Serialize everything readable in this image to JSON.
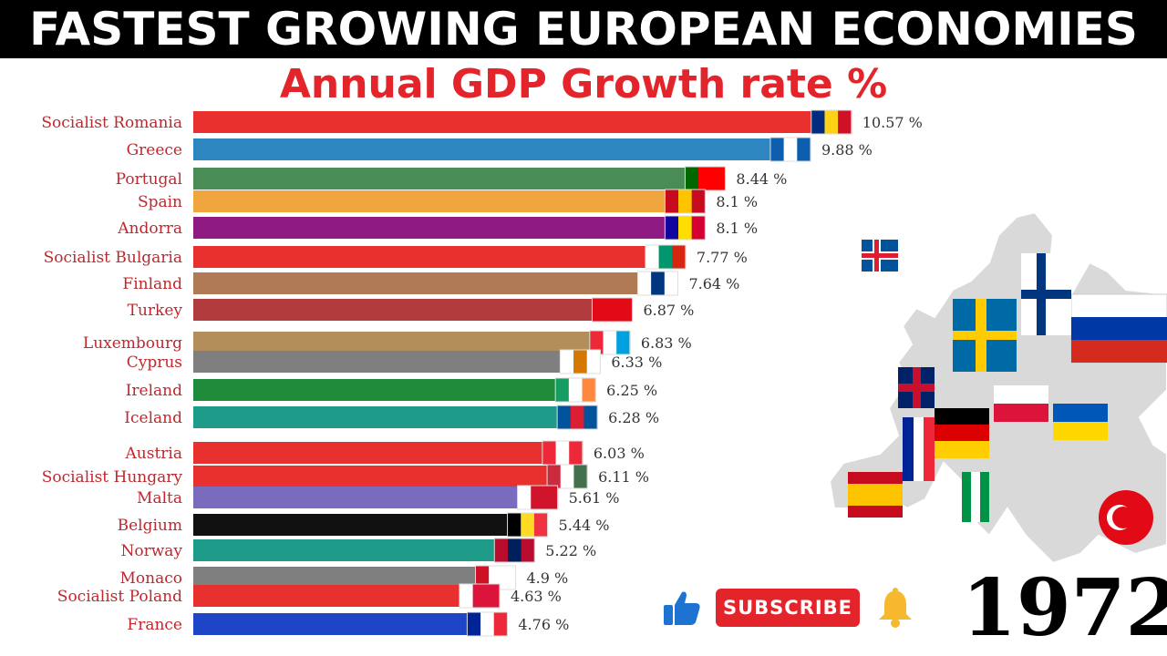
{
  "banner": {
    "title": "FASTEST GROWING EUROPEAN ECONOMIES"
  },
  "subtitle": "Annual GDP Growth rate %",
  "year": "1972",
  "subscribe_label": "SUBSCRIBE",
  "icons": {
    "like": "thumbs-up-icon",
    "bell": "bell-icon",
    "map": "europe-flag-map"
  },
  "colors": {
    "accent": "#e3242b",
    "label": "#c0272d"
  },
  "chart_data": {
    "type": "bar",
    "orientation": "horizontal",
    "title": "Annual GDP Growth rate %",
    "unit": "%",
    "categories": [
      "Socialist Romania",
      "Greece",
      "Portugal",
      "Spain",
      "Andorra",
      "Socialist Bulgaria",
      "Finland",
      "Turkey",
      "Luxembourg",
      "Cyprus",
      "Ireland",
      "Iceland",
      "Austria",
      "Socialist Hungary",
      "Malta",
      "Belgium",
      "Norway",
      "Monaco",
      "Socialist Poland",
      "France"
    ],
    "values": [
      10.57,
      9.88,
      8.44,
      8.1,
      8.1,
      7.77,
      7.64,
      6.87,
      6.83,
      6.33,
      6.25,
      6.28,
      6.03,
      6.11,
      5.61,
      5.44,
      5.22,
      4.9,
      4.63,
      4.76
    ],
    "value_labels": [
      "10.57 %",
      "9.88 %",
      "8.44 %",
      "8.1 %",
      "8.1 %",
      "7.77 %",
      "7.64 %",
      "6.87 %",
      "6.83 %",
      "6.33 %",
      "6.25 %",
      "6.28 %",
      "6.03 %",
      "6.11 %",
      "5.61 %",
      "5.44 %",
      "5.22 %",
      "4.9 %",
      "4.63 %",
      "4.76 %"
    ],
    "bar_colors": [
      "#e8302f",
      "#2e86c1",
      "#4a8c55",
      "#f0a63f",
      "#8e1a82",
      "#e8302f",
      "#b07a55",
      "#b23b3d",
      "#b38d5a",
      "#7f7f7f",
      "#1e8c3a",
      "#1f9b8a",
      "#e8302f",
      "#e8302f",
      "#7b6bbf",
      "#111111",
      "#1f9b8a",
      "#7f7f7f",
      "#e8302f",
      "#1e45c8"
    ],
    "flag_colors": [
      [
        "#002b7f",
        "#fcd116",
        "#ce1126"
      ],
      [
        "#0d5eaf",
        "#ffffff",
        "#0d5eaf"
      ],
      [
        "#006600",
        "#ff0000",
        "#ff0000"
      ],
      [
        "#c60b1e",
        "#ffc400",
        "#c60b1e"
      ],
      [
        "#10069f",
        "#fedd00",
        "#d50032"
      ],
      [
        "#ffffff",
        "#00966e",
        "#d62612"
      ],
      [
        "#ffffff",
        "#003580",
        "#ffffff"
      ],
      [
        "#e30a17",
        "#e30a17",
        "#e30a17"
      ],
      [
        "#ed2939",
        "#ffffff",
        "#00a1de"
      ],
      [
        "#ffffff",
        "#d57800",
        "#ffffff"
      ],
      [
        "#169b62",
        "#ffffff",
        "#ff883e"
      ],
      [
        "#02529c",
        "#dc1e35",
        "#02529c"
      ],
      [
        "#ed2939",
        "#ffffff",
        "#ed2939"
      ],
      [
        "#cd2a3e",
        "#ffffff",
        "#436f4d"
      ],
      [
        "#ffffff",
        "#cf142b",
        "#cf142b"
      ],
      [
        "#000000",
        "#fdda24",
        "#ef3340"
      ],
      [
        "#ba0c2f",
        "#00205b",
        "#ba0c2f"
      ],
      [
        "#ce1126",
        "#ffffff",
        "#ffffff"
      ],
      [
        "#ffffff",
        "#dc143c",
        "#dc143c"
      ],
      [
        "#002395",
        "#ffffff",
        "#ed2939"
      ]
    ],
    "xlim": [
      0,
      11.3
    ],
    "grid": false,
    "legend": "none"
  }
}
